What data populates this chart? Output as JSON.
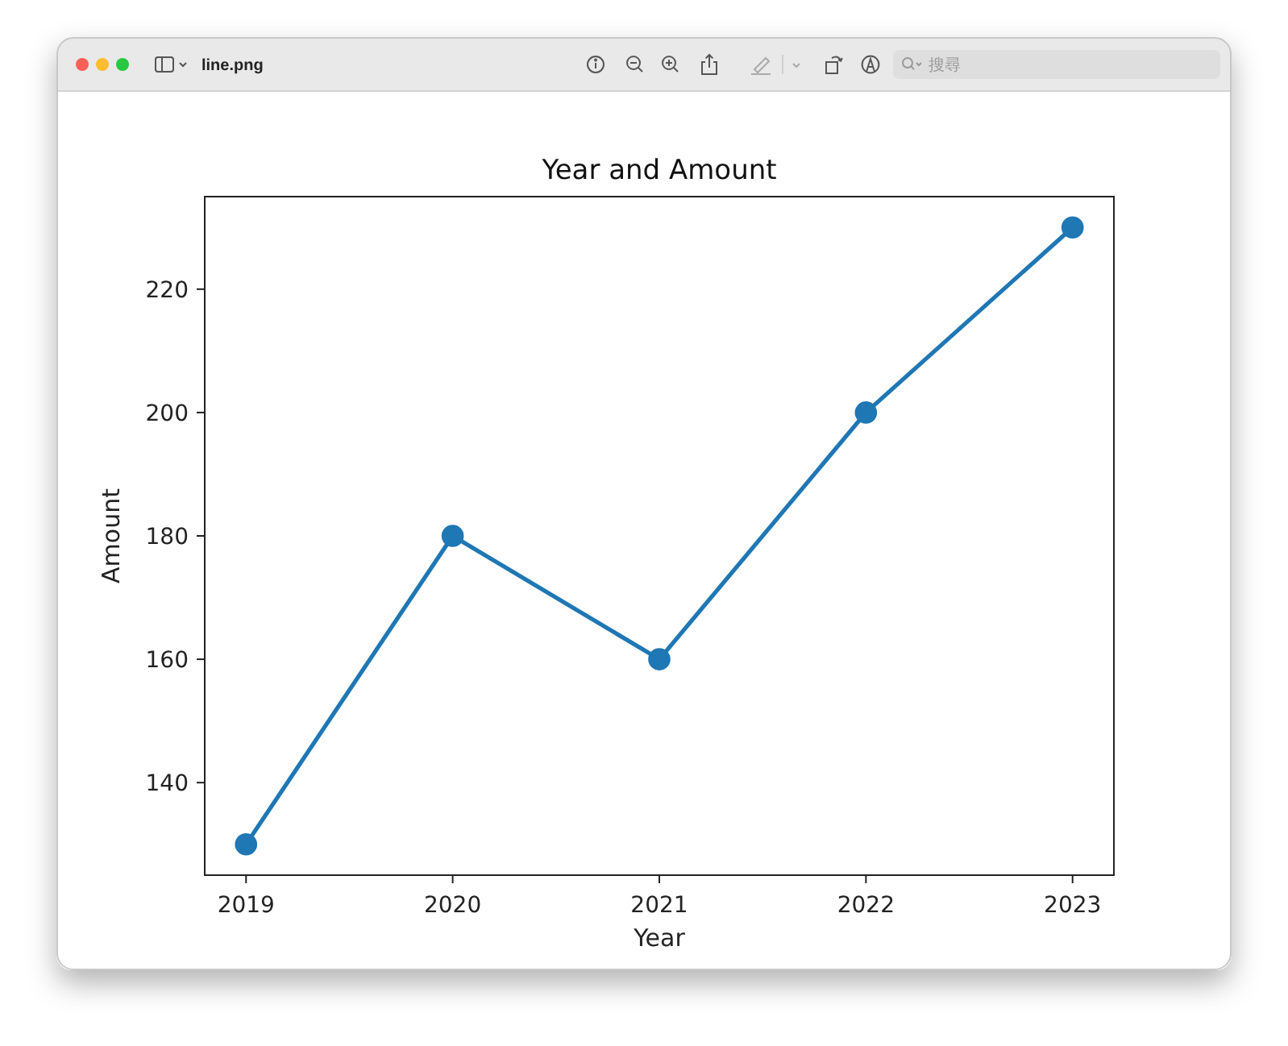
{
  "chart_data": {
    "type": "line",
    "title": "Year and Amount",
    "xlabel": "Year",
    "ylabel": "Amount",
    "annotations": [
      "line.png",
      "搜尋"
    ],
    "x": [
      2019,
      2020,
      2021,
      2022,
      2023
    ],
    "values": [
      130,
      180,
      160,
      200,
      230
    ],
    "color": "#1f77b4",
    "xlim": [
      2018.8,
      2023.2
    ],
    "xticks": [
      2019,
      2020,
      2021,
      2022,
      2023
    ],
    "ylim": [
      125,
      235
    ],
    "yticks": [
      140,
      160,
      180,
      200,
      220
    ],
    "marker": "circle",
    "line_style": "solid"
  }
}
